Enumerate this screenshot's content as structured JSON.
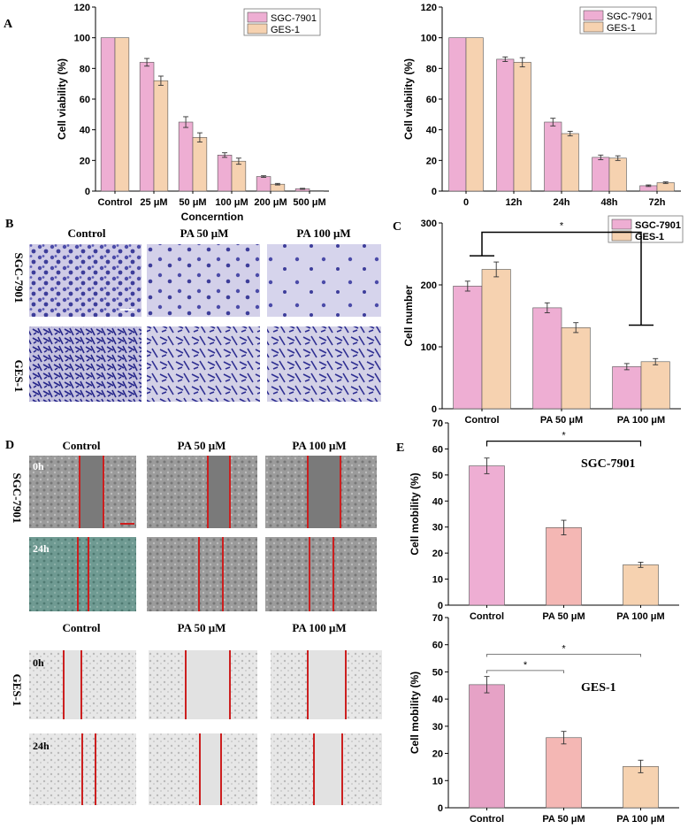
{
  "panels": {
    "A": "A",
    "B": "B",
    "C": "C",
    "D": "D",
    "E": "E"
  },
  "colors": {
    "pink": "#eeaed3",
    "peach": "#f6d2b0",
    "salmon": "#f4b7b4",
    "purple": "#4b4ba8",
    "cellBg": "#cfcbe6",
    "wound": "#cc1f1f"
  },
  "chart_data": [
    {
      "id": "A1",
      "type": "bar",
      "categories": [
        "Control",
        "25 μM",
        "50 μM",
        "100 μM",
        "200 μM",
        "500 μM"
      ],
      "xlabel": "Concerntion",
      "ylabel": "Cell viability (%)",
      "ylim": [
        0,
        120
      ],
      "yticks": [
        "0",
        "20",
        "40",
        "60",
        "80",
        "100",
        "120"
      ],
      "series": [
        {
          "name": "SGC-7901",
          "color": "#eeaed3",
          "values": [
            100,
            84,
            45,
            23.5,
            9.5,
            1.5
          ],
          "err": [
            0,
            2.5,
            3.5,
            1.5,
            0.5,
            0.3
          ]
        },
        {
          "name": "GES-1",
          "color": "#f6d2b0",
          "values": [
            100,
            72,
            35,
            19.5,
            4.5,
            0.3
          ],
          "err": [
            0,
            3,
            3,
            2,
            0.5,
            0
          ]
        }
      ]
    },
    {
      "id": "A2",
      "type": "bar",
      "categories": [
        "0",
        "12h",
        "24h",
        "48h",
        "72h"
      ],
      "xlabel": "",
      "ylabel": "Cell viability (%)",
      "ylim": [
        0,
        120
      ],
      "yticks": [
        "0",
        "20",
        "40",
        "60",
        "80",
        "100",
        "120"
      ],
      "series": [
        {
          "name": "SGC-7901",
          "color": "#eeaed3",
          "values": [
            100,
            86,
            45,
            22,
            3.5
          ],
          "err": [
            0,
            1.5,
            2.5,
            1.5,
            0.5
          ]
        },
        {
          "name": "GES-1",
          "color": "#f6d2b0",
          "values": [
            100,
            84,
            37.5,
            21.5,
            5.5
          ],
          "err": [
            0,
            3,
            1.5,
            1.5,
            0.5
          ]
        }
      ]
    },
    {
      "id": "C",
      "type": "bar",
      "categories": [
        "Control",
        "PA 50 μM",
        "PA 100 μM"
      ],
      "xlabel": "",
      "ylabel": "Cell number",
      "ylim": [
        0,
        300
      ],
      "yticks": [
        "0",
        "100",
        "200",
        "300"
      ],
      "series": [
        {
          "name": "SGC-7901",
          "color": "#eeaed3",
          "values": [
            198,
            163,
            68
          ],
          "err": [
            8,
            8,
            5
          ]
        },
        {
          "name": "GES-1",
          "color": "#f6d2b0",
          "values": [
            225,
            131,
            76
          ],
          "err": [
            12,
            8,
            5
          ]
        }
      ],
      "annotations": [
        "*"
      ]
    },
    {
      "id": "E1",
      "type": "bar",
      "categories": [
        "Control",
        "PA 50 μM",
        "PA 100 μM"
      ],
      "xlabel": "",
      "ylabel": "Cell mobility (%)",
      "ylim": [
        0,
        70
      ],
      "yticks": [
        "0",
        "10",
        "20",
        "30",
        "40",
        "50",
        "60",
        "70"
      ],
      "title": "SGC-7901",
      "series": [
        {
          "name": "SGC-7901",
          "values": [
            53.5,
            29.8,
            15.5
          ],
          "err": [
            3,
            2.8,
            1
          ],
          "colors": [
            "#eeaed3",
            "#f4b7b4",
            "#f6d2b0"
          ]
        }
      ],
      "annotations": [
        "*"
      ]
    },
    {
      "id": "E2",
      "type": "bar",
      "categories": [
        "Control",
        "PA 50 μM",
        "PA 100 μM"
      ],
      "xlabel": "",
      "ylabel": "Cell mobility (%)",
      "ylim": [
        0,
        70
      ],
      "yticks": [
        "0",
        "10",
        "20",
        "30",
        "40",
        "50",
        "60",
        "70"
      ],
      "title": "GES-1",
      "series": [
        {
          "name": "GES-1",
          "values": [
            45.3,
            25.8,
            15.2
          ],
          "err": [
            3,
            2.3,
            2.3
          ],
          "colors": [
            "#e6a2c6",
            "#f4b7b4",
            "#f6d2b0"
          ]
        }
      ],
      "annotations": [
        "*",
        "*"
      ]
    }
  ],
  "panelB": {
    "columns": [
      "Control",
      "PA 50 μM",
      "PA 100 μM"
    ],
    "rows": [
      "SGC-7901",
      "GES-1"
    ]
  },
  "panelD": {
    "columns": [
      "Control",
      "PA 50 μM",
      "PA 100 μM"
    ],
    "rows": [
      "SGC-7901",
      "GES-1"
    ],
    "times": [
      "0h",
      "24h"
    ]
  }
}
